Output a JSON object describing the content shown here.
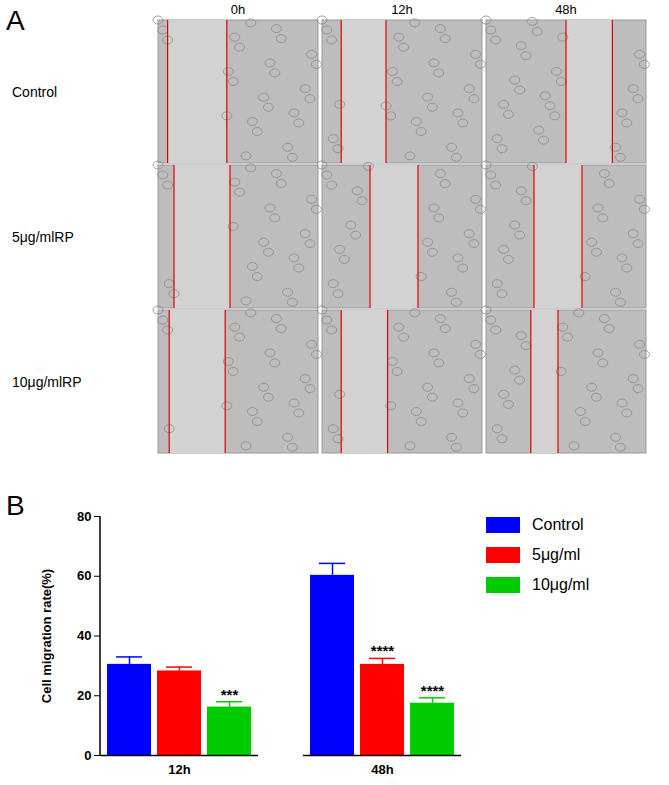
{
  "panel_labels": [
    "A",
    "B"
  ],
  "micrographs": {
    "columns": [
      "0h",
      "12h",
      "48h"
    ],
    "rows": [
      "Control",
      "5μg/mlRP",
      "10μg/mlRP"
    ]
  },
  "chart_data": {
    "type": "bar",
    "categories": [
      "12h",
      "48h"
    ],
    "series": [
      {
        "name": "Control",
        "color": "#0000ff",
        "values": [
          30.5,
          60.3
        ],
        "errors": [
          2.5,
          4.0
        ],
        "significance": [
          null,
          null
        ]
      },
      {
        "name": "5μg/ml",
        "color": "#ff0000",
        "values": [
          28.3,
          30.5
        ],
        "errors": [
          1.3,
          2.0
        ],
        "significance": [
          null,
          "****"
        ]
      },
      {
        "name": "10μg/ml",
        "color": "#00cc00",
        "values": [
          16.2,
          17.5
        ],
        "errors": [
          1.8,
          1.8
        ],
        "significance": [
          "***",
          "****"
        ]
      }
    ],
    "ylabel": "Cell migration rate(%)",
    "ylim": [
      0,
      80
    ],
    "yticks": [
      0,
      20,
      40,
      60,
      80
    ],
    "legend": "right",
    "grid": false
  }
}
